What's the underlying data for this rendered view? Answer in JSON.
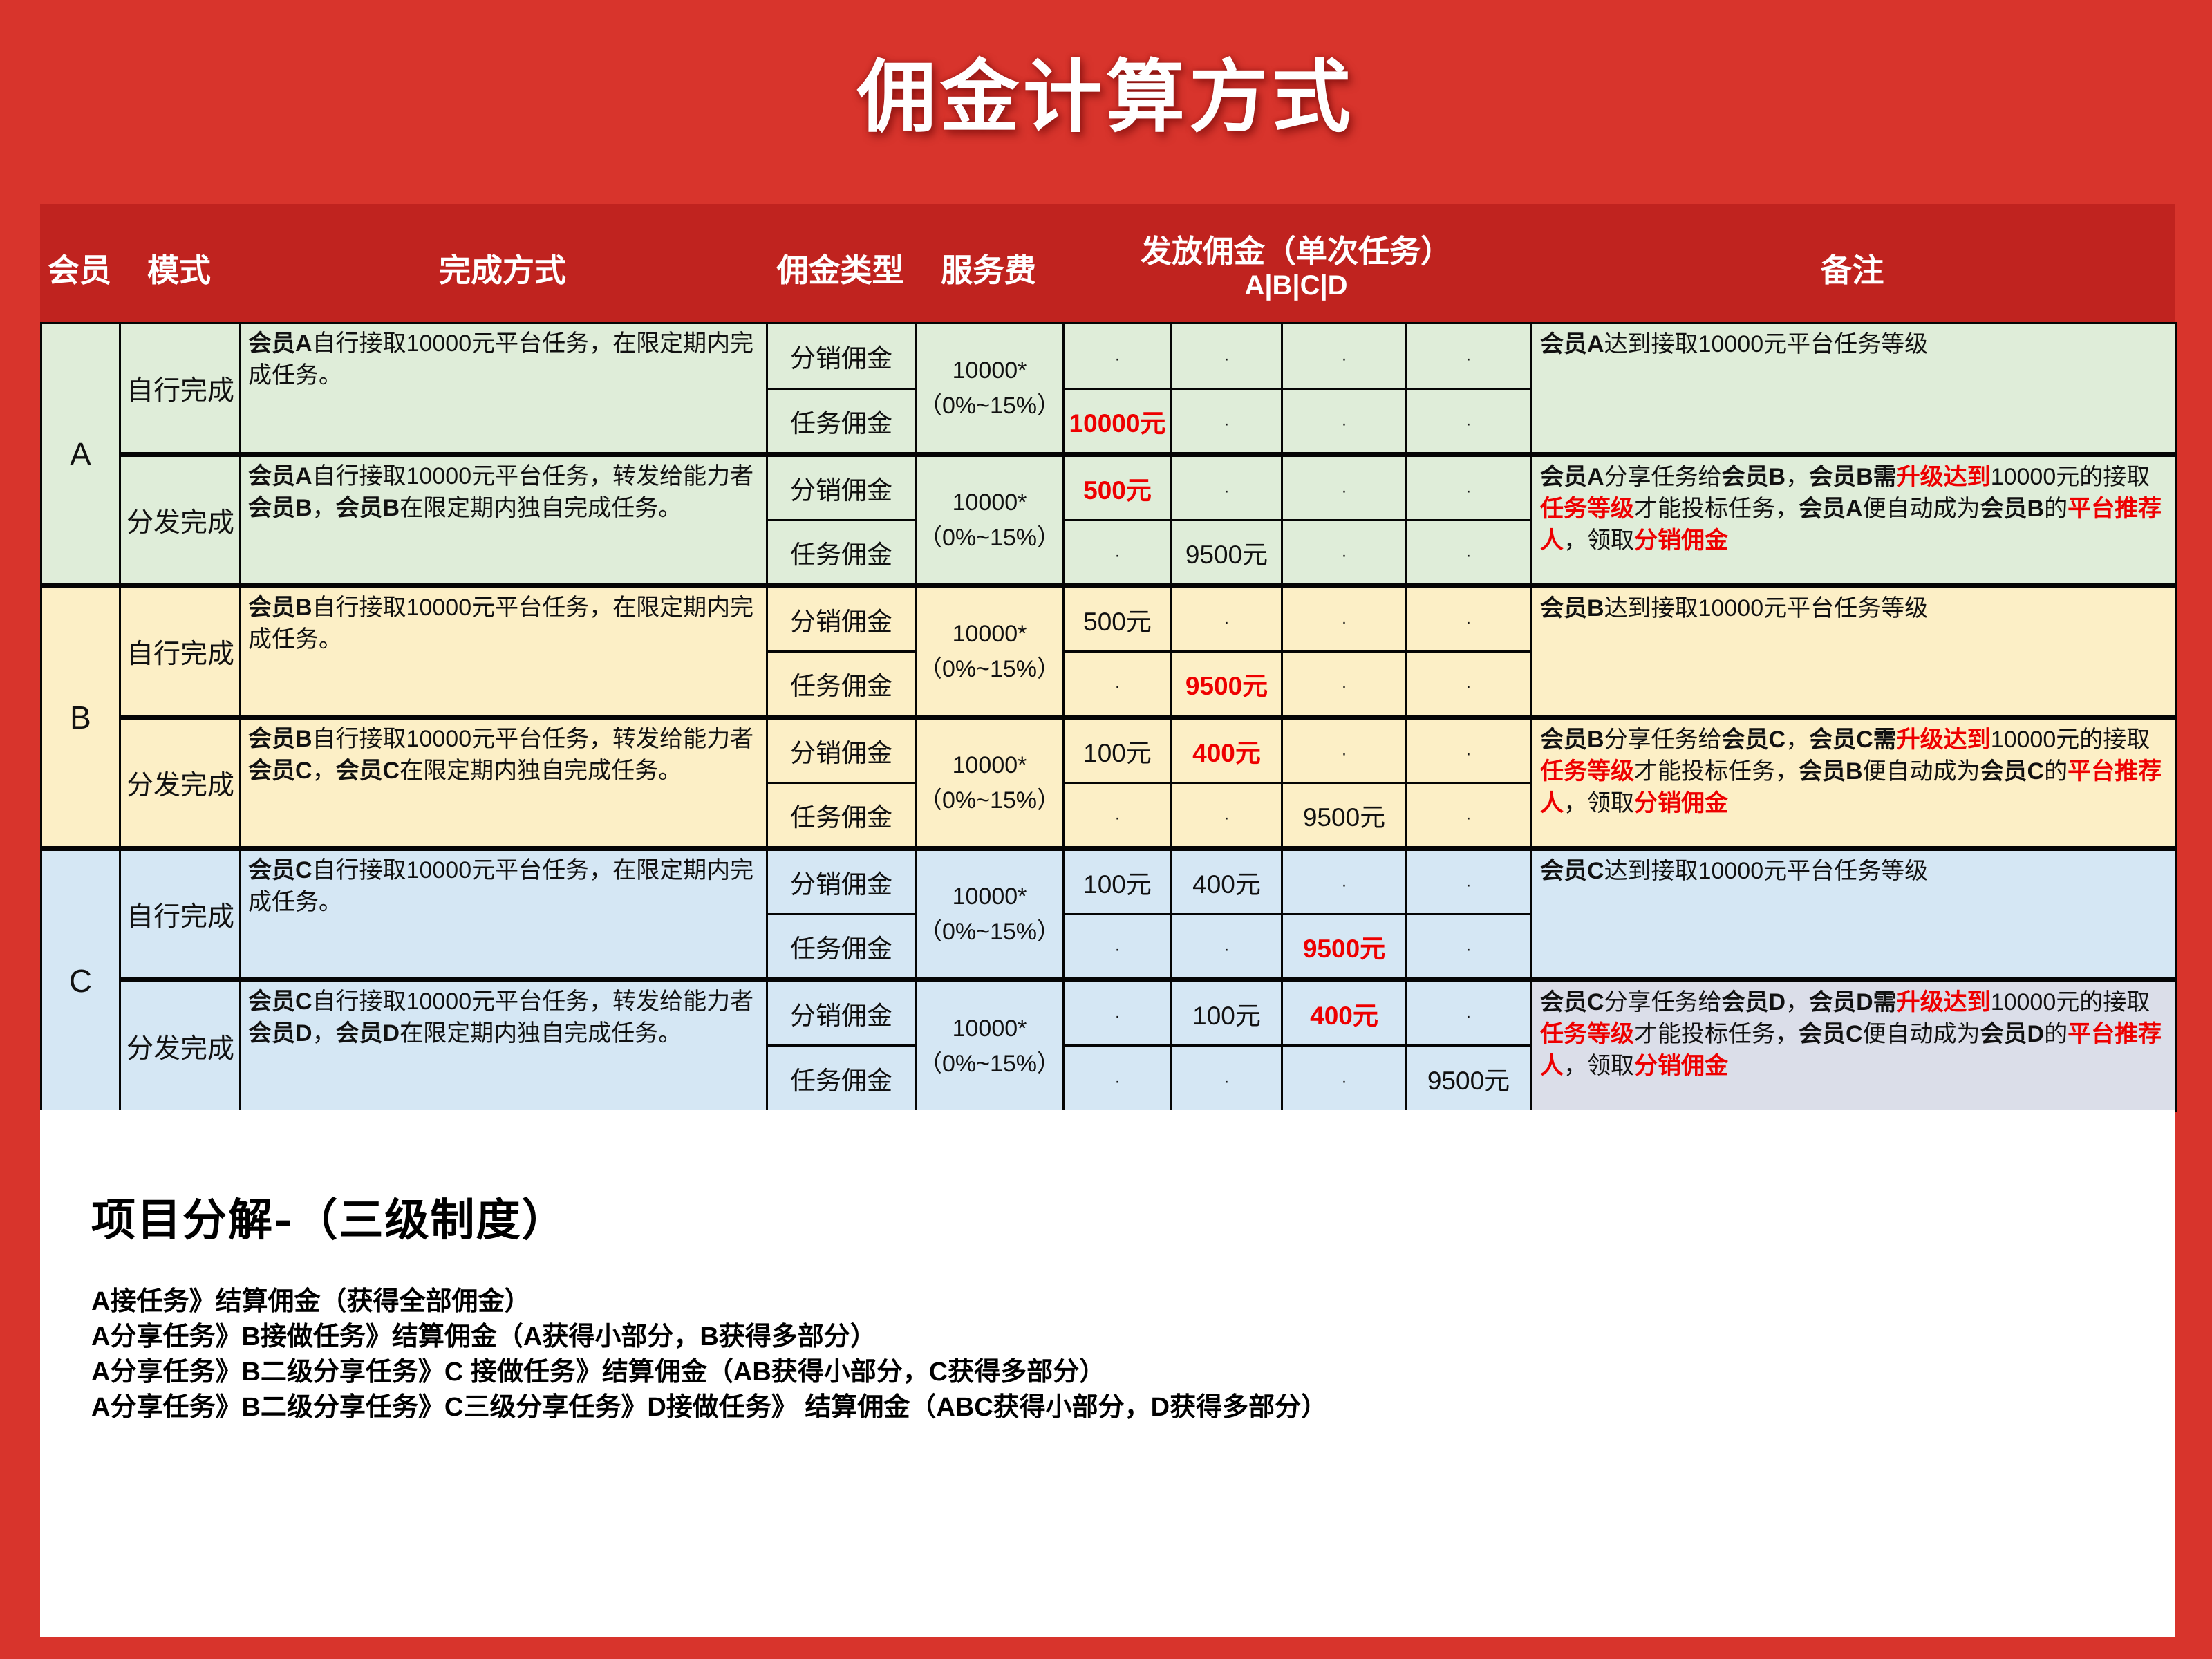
{
  "title": "佣金计算方式",
  "colors": {
    "page_red": "#D8342C",
    "header_band_red": "#C0231F",
    "section_a_green": "#DFEDD9",
    "section_b_yellow": "#FCEFC6",
    "section_c_blue": "#D5E7F4",
    "section_c_remark_alt": "#DBDEE9",
    "highlight_red_text": "#EE0000"
  },
  "table": {
    "headers": {
      "member": "会员",
      "mode": "模式",
      "method": "完成方式",
      "commission_type": "佣金类型",
      "service_fee": "服务费",
      "payout_main": "发放佣金（单次任务）",
      "payout_sub": "A|B|C|D",
      "remark": "备注"
    },
    "commission_type_labels": [
      "分销佣金",
      "任务佣金"
    ],
    "service_fee_lines": [
      "10000*",
      "（0%~15%）"
    ],
    "empty_cell_dot": "·",
    "sections": [
      {
        "member": "A",
        "color_key": "section_a_green",
        "modes": [
          {
            "mode": "自行完成",
            "method": [
              {
                "t": "会员A",
                "b": 1
              },
              {
                "t": "自行接取10000元平台任务，在限定期内完成任务。"
              }
            ],
            "rows": [
              {
                "values": [
                  {
                    "t": "·"
                  },
                  {
                    "t": "·"
                  },
                  {
                    "t": "·"
                  },
                  {
                    "t": "·"
                  }
                ]
              },
              {
                "values": [
                  {
                    "t": "10000元",
                    "red": 1
                  },
                  {
                    "t": "·"
                  },
                  {
                    "t": "·"
                  },
                  {
                    "t": "·"
                  }
                ]
              }
            ],
            "remark": [
              {
                "t": "会员A",
                "b": 1
              },
              {
                "t": "达到接取10000元平台任务等级"
              }
            ]
          },
          {
            "mode": "分发完成",
            "method": [
              {
                "t": "会员A",
                "b": 1
              },
              {
                "t": "自行接取10000元平台任务，转发给能力者"
              },
              {
                "t": "会员B",
                "b": 1
              },
              {
                "t": "，"
              },
              {
                "t": "会员B",
                "b": 1
              },
              {
                "t": "在限定期内独自完成任务。"
              }
            ],
            "rows": [
              {
                "values": [
                  {
                    "t": "500元",
                    "red": 1
                  },
                  {
                    "t": "·"
                  },
                  {
                    "t": "·"
                  },
                  {
                    "t": "·"
                  }
                ]
              },
              {
                "values": [
                  {
                    "t": "·"
                  },
                  {
                    "t": "9500元"
                  },
                  {
                    "t": "·"
                  },
                  {
                    "t": "·"
                  }
                ]
              }
            ],
            "remark": [
              {
                "t": "会员A",
                "b": 1
              },
              {
                "t": "分享任务给"
              },
              {
                "t": "会员B",
                "b": 1
              },
              {
                "t": "，"
              },
              {
                "t": "会员B需",
                "b": 1
              },
              {
                "t": "升级达到",
                "b": 1,
                "red": 1
              },
              {
                "t": "10000元的接取"
              },
              {
                "t": "任务等级",
                "b": 1,
                "red": 1
              },
              {
                "t": "才能投标任务，"
              },
              {
                "t": "会员A",
                "b": 1
              },
              {
                "t": "便自动成为"
              },
              {
                "t": "会员B",
                "b": 1
              },
              {
                "t": "的"
              },
              {
                "t": "平台推荐人",
                "b": 1,
                "red": 1
              },
              {
                "t": "，领取"
              },
              {
                "t": "分销佣金",
                "b": 1,
                "red": 1
              }
            ]
          }
        ]
      },
      {
        "member": "B",
        "color_key": "section_b_yellow",
        "modes": [
          {
            "mode": "自行完成",
            "method": [
              {
                "t": "会员B",
                "b": 1
              },
              {
                "t": "自行接取10000元平台任务，在限定期内完成任务。"
              }
            ],
            "rows": [
              {
                "values": [
                  {
                    "t": "500元"
                  },
                  {
                    "t": "·"
                  },
                  {
                    "t": "·"
                  },
                  {
                    "t": "·"
                  }
                ]
              },
              {
                "values": [
                  {
                    "t": "·"
                  },
                  {
                    "t": "9500元",
                    "red": 1
                  },
                  {
                    "t": "·"
                  },
                  {
                    "t": "·"
                  }
                ]
              }
            ],
            "remark": [
              {
                "t": "会员B",
                "b": 1
              },
              {
                "t": "达到接取10000元平台任务等级"
              }
            ]
          },
          {
            "mode": "分发完成",
            "method": [
              {
                "t": "会员B",
                "b": 1
              },
              {
                "t": "自行接取10000元平台任务，转发给能力者"
              },
              {
                "t": "会员C",
                "b": 1
              },
              {
                "t": "，"
              },
              {
                "t": "会员C",
                "b": 1
              },
              {
                "t": "在限定期内独自完成任务。"
              }
            ],
            "rows": [
              {
                "values": [
                  {
                    "t": "100元"
                  },
                  {
                    "t": "400元",
                    "red": 1
                  },
                  {
                    "t": "·"
                  },
                  {
                    "t": "·"
                  }
                ]
              },
              {
                "values": [
                  {
                    "t": "·"
                  },
                  {
                    "t": "·"
                  },
                  {
                    "t": "9500元"
                  },
                  {
                    "t": "·"
                  }
                ]
              }
            ],
            "remark": [
              {
                "t": "会员B",
                "b": 1
              },
              {
                "t": "分享任务给"
              },
              {
                "t": "会员C",
                "b": 1
              },
              {
                "t": "，"
              },
              {
                "t": "会员C需",
                "b": 1
              },
              {
                "t": "升级达到",
                "b": 1,
                "red": 1
              },
              {
                "t": "10000元的接取"
              },
              {
                "t": "任务等级",
                "b": 1,
                "red": 1
              },
              {
                "t": "才能投标任务，"
              },
              {
                "t": "会员B",
                "b": 1
              },
              {
                "t": "便自动成为"
              },
              {
                "t": "会员C",
                "b": 1
              },
              {
                "t": "的"
              },
              {
                "t": "平台推荐人",
                "b": 1,
                "red": 1
              },
              {
                "t": "，领取"
              },
              {
                "t": "分销佣金",
                "b": 1,
                "red": 1
              }
            ]
          }
        ]
      },
      {
        "member": "C",
        "color_key": "section_c_blue",
        "modes": [
          {
            "mode": "自行完成",
            "method": [
              {
                "t": "会员C",
                "b": 1
              },
              {
                "t": "自行接取10000元平台任务，在限定期内完成任务。"
              }
            ],
            "rows": [
              {
                "values": [
                  {
                    "t": "100元"
                  },
                  {
                    "t": "400元"
                  },
                  {
                    "t": "·"
                  },
                  {
                    "t": "·"
                  }
                ]
              },
              {
                "values": [
                  {
                    "t": "·"
                  },
                  {
                    "t": "·"
                  },
                  {
                    "t": "9500元",
                    "red": 1
                  },
                  {
                    "t": "·"
                  }
                ]
              }
            ],
            "remark": [
              {
                "t": "会员C",
                "b": 1
              },
              {
                "t": "达到接取10000元平台任务等级"
              }
            ]
          },
          {
            "mode": "分发完成",
            "method": [
              {
                "t": "会员C",
                "b": 1
              },
              {
                "t": "自行接取10000元平台任务，转发给能力者"
              },
              {
                "t": "会员D",
                "b": 1
              },
              {
                "t": "，"
              },
              {
                "t": "会员D",
                "b": 1
              },
              {
                "t": "在限定期内独自完成任务。"
              }
            ],
            "rows": [
              {
                "values": [
                  {
                    "t": "·"
                  },
                  {
                    "t": "100元"
                  },
                  {
                    "t": "400元",
                    "red": 1
                  },
                  {
                    "t": "·"
                  }
                ]
              },
              {
                "values": [
                  {
                    "t": "·"
                  },
                  {
                    "t": "·"
                  },
                  {
                    "t": "·"
                  },
                  {
                    "t": "9500元"
                  }
                ]
              }
            ],
            "remark_alt_bg": true,
            "remark": [
              {
                "t": "会员C",
                "b": 1
              },
              {
                "t": "分享任务给"
              },
              {
                "t": "会员D",
                "b": 1
              },
              {
                "t": "，"
              },
              {
                "t": "会员D需",
                "b": 1
              },
              {
                "t": "升级达到",
                "b": 1,
                "red": 1
              },
              {
                "t": "10000元的接取"
              },
              {
                "t": "任务等级",
                "b": 1,
                "red": 1
              },
              {
                "t": "才能投标任务，"
              },
              {
                "t": "会员C",
                "b": 1
              },
              {
                "t": "便自动成为"
              },
              {
                "t": "会员D",
                "b": 1
              },
              {
                "t": "的"
              },
              {
                "t": "平台推荐人",
                "b": 1,
                "red": 1
              },
              {
                "t": "，领取"
              },
              {
                "t": "分销佣金",
                "b": 1,
                "red": 1
              }
            ]
          }
        ]
      }
    ]
  },
  "footer": {
    "heading": "项目分解-（三级制度）",
    "lines": [
      "A接任务》结算佣金（获得全部佣金）",
      "A分享任务》B接做任务》结算佣金（A获得小部分，B获得多部分）",
      "A分享任务》B二级分享任务》C 接做任务》结算佣金（AB获得小部分，C获得多部分）",
      "A分享任务》B二级分享任务》C三级分享任务》D接做任务》 结算佣金（ABC获得小部分，D获得多部分）"
    ]
  }
}
